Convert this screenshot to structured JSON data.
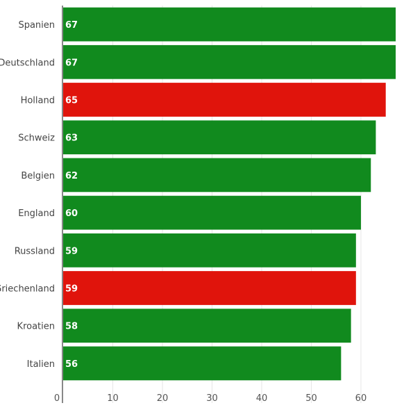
{
  "chart_data": {
    "type": "bar",
    "orientation": "horizontal",
    "categories": [
      "Spanien",
      "Deutschland",
      "Holland",
      "Schweiz",
      "Belgien",
      "England",
      "Russland",
      "Griechenland",
      "Kroatien",
      "Italien"
    ],
    "values": [
      67,
      67,
      65,
      63,
      62,
      60,
      59,
      59,
      58,
      56
    ],
    "value_labels": [
      "67",
      "67",
      "65",
      "63",
      "62",
      "60",
      "59",
      "59",
      "58",
      "56"
    ],
    "bar_colors": [
      "#118a1e",
      "#118a1e",
      "#e0140c",
      "#118a1e",
      "#118a1e",
      "#118a1e",
      "#118a1e",
      "#e0140c",
      "#118a1e",
      "#118a1e"
    ],
    "x_ticks": [
      0,
      10,
      20,
      30,
      40,
      50,
      60
    ],
    "x_tick_labels": [
      "0",
      "10",
      "20",
      "30",
      "40",
      "50",
      "60"
    ],
    "xlim": [
      0,
      67
    ],
    "title": "",
    "xlabel": "",
    "ylabel": "",
    "grid": true,
    "legend": "none"
  }
}
